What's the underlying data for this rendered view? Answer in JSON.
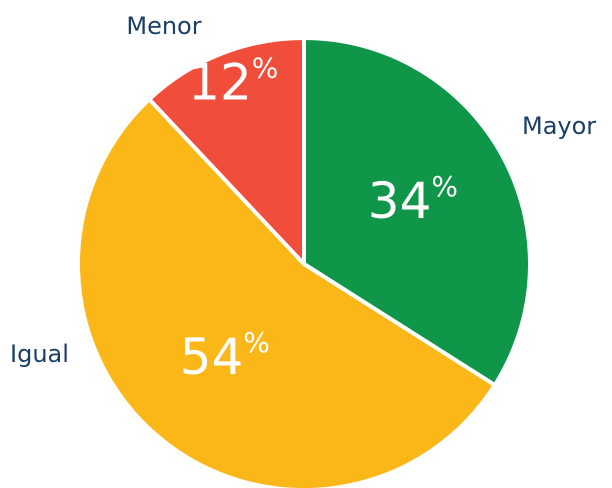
{
  "chart_data": {
    "type": "pie",
    "categories": [
      "Mayor",
      "Igual",
      "Menor"
    ],
    "values": [
      34,
      54,
      12
    ],
    "value_labels": [
      "34%",
      "54%",
      "12%"
    ],
    "colors": [
      "#0f9648",
      "#fbb718",
      "#f04d3a"
    ]
  }
}
